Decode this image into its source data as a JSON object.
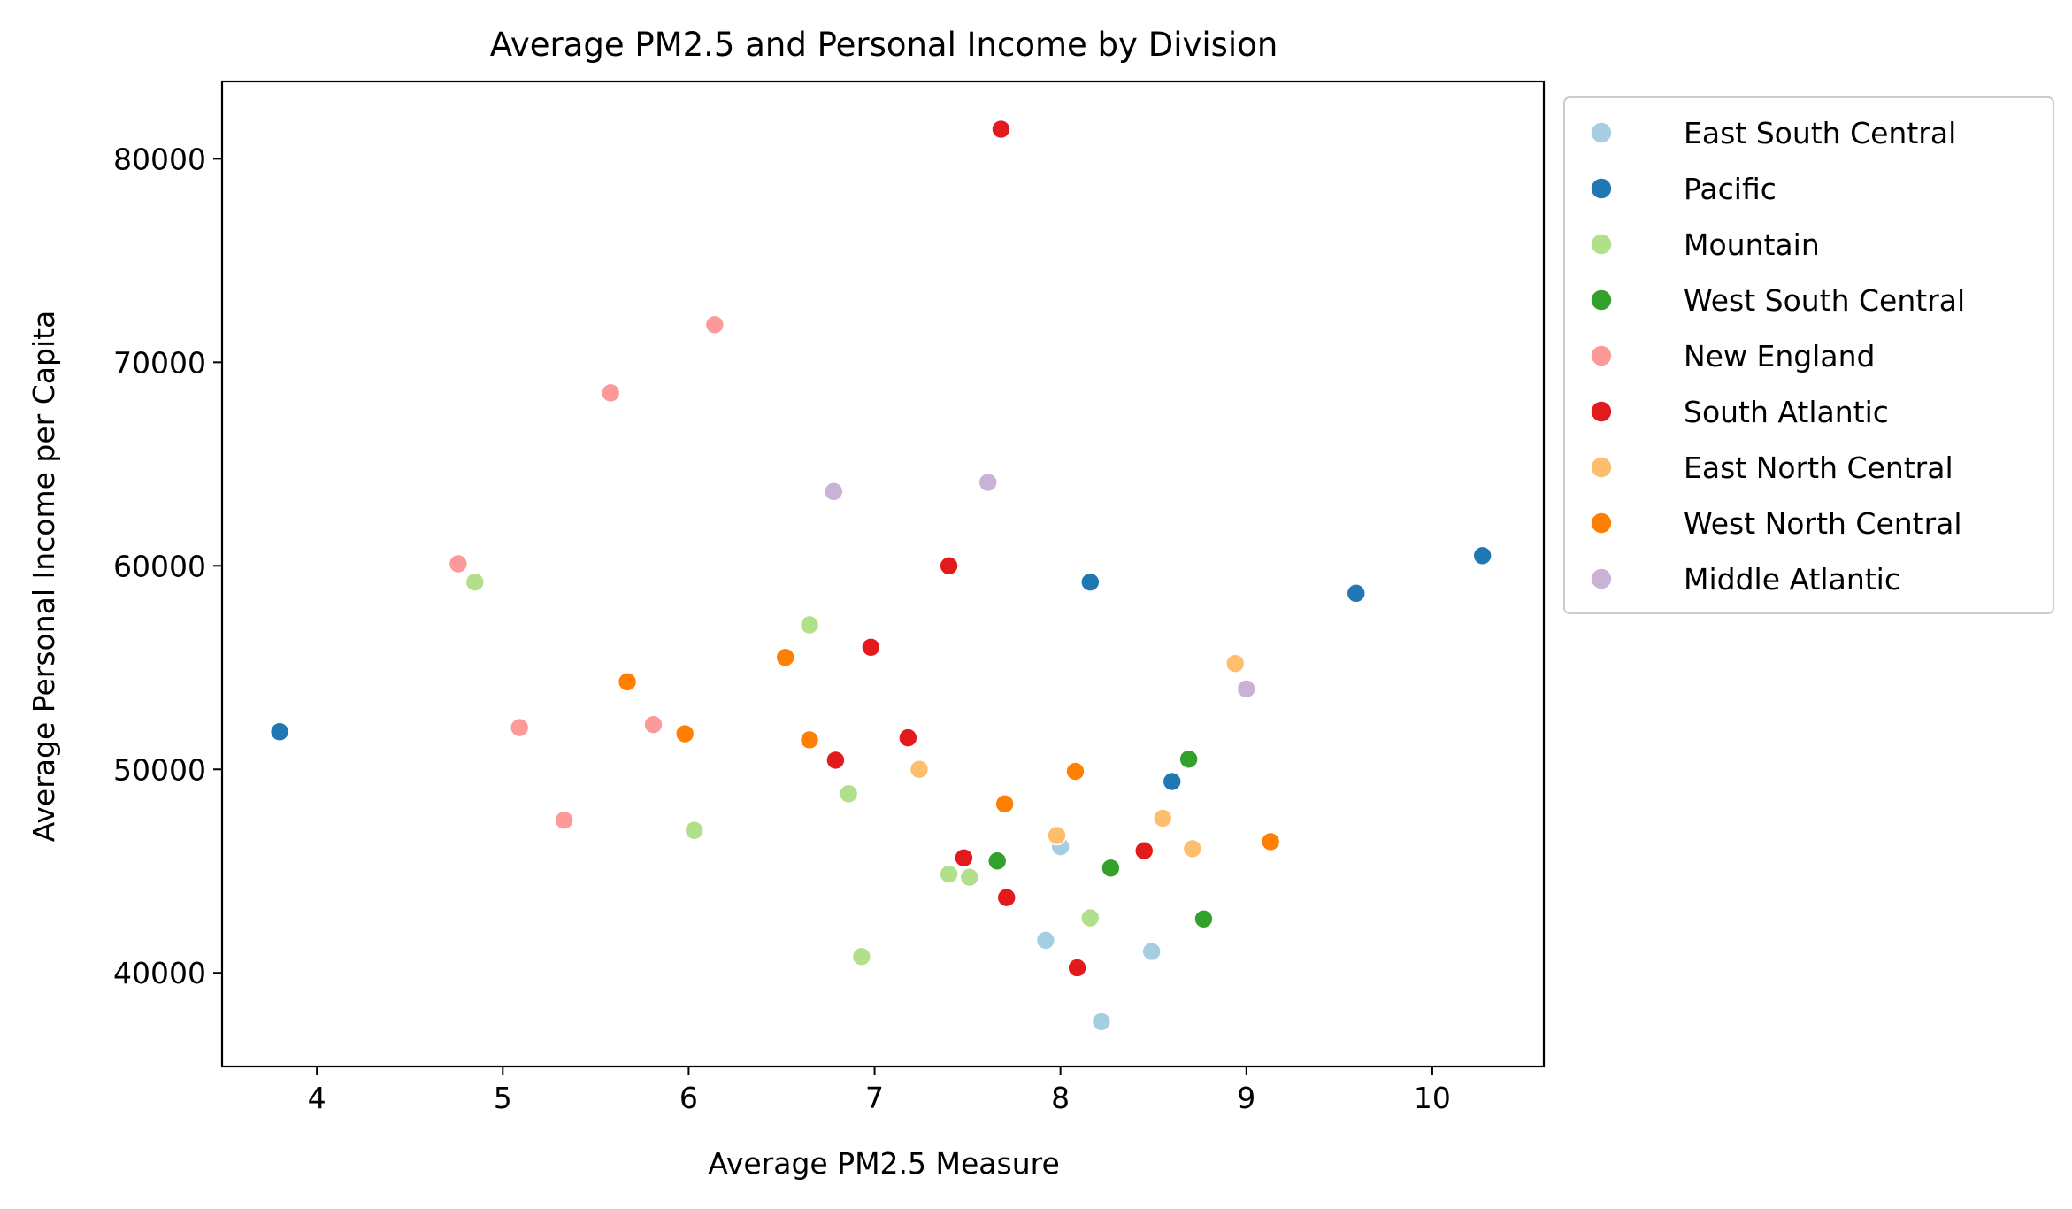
{
  "chart_data": {
    "type": "scatter",
    "title": "Average PM2.5 and Personal Income by Division",
    "xlabel": "Average PM2.5 Measure",
    "ylabel": "Average Personal Income per Capita",
    "xlim": [
      3.49,
      10.6
    ],
    "ylim": [
      35400,
      83800
    ],
    "xticks": [
      4,
      5,
      6,
      7,
      8,
      9,
      10
    ],
    "yticks": [
      40000,
      50000,
      60000,
      70000,
      80000
    ],
    "grid": false,
    "legend_position": "outside-right",
    "series": [
      {
        "name": "East South Central",
        "color": "#a6cee3",
        "points": [
          [
            8.0,
            46200
          ],
          [
            7.92,
            41600
          ],
          [
            8.49,
            41050
          ],
          [
            8.22,
            37600
          ]
        ]
      },
      {
        "name": "Pacific",
        "color": "#1f78b4",
        "points": [
          [
            3.8,
            51850
          ],
          [
            8.16,
            59200
          ],
          [
            9.59,
            58650
          ],
          [
            10.27,
            60500
          ],
          [
            8.6,
            49400
          ]
        ]
      },
      {
        "name": "Mountain",
        "color": "#b2df8a",
        "points": [
          [
            4.85,
            59200
          ],
          [
            6.65,
            57100
          ],
          [
            6.86,
            48800
          ],
          [
            6.03,
            47000
          ],
          [
            7.4,
            44850
          ],
          [
            7.51,
            44700
          ],
          [
            8.16,
            42700
          ],
          [
            6.93,
            40800
          ]
        ]
      },
      {
        "name": "West South Central",
        "color": "#33a02c",
        "points": [
          [
            8.69,
            50500
          ],
          [
            7.66,
            45500
          ],
          [
            8.27,
            45150
          ],
          [
            8.77,
            42650
          ]
        ]
      },
      {
        "name": "New England",
        "color": "#fb9a99",
        "points": [
          [
            6.14,
            71850
          ],
          [
            5.58,
            68500
          ],
          [
            4.76,
            60100
          ],
          [
            5.09,
            52050
          ],
          [
            5.81,
            52200
          ],
          [
            5.33,
            47500
          ]
        ]
      },
      {
        "name": "South Atlantic",
        "color": "#e31a1c",
        "points": [
          [
            7.68,
            81450
          ],
          [
            7.4,
            60000
          ],
          [
            6.98,
            56000
          ],
          [
            7.18,
            51550
          ],
          [
            6.79,
            50450
          ],
          [
            7.48,
            45650
          ],
          [
            8.45,
            46000
          ],
          [
            7.71,
            43700
          ],
          [
            8.09,
            40250
          ]
        ]
      },
      {
        "name": "East North Central",
        "color": "#fdbf6f",
        "points": [
          [
            8.94,
            55200
          ],
          [
            7.24,
            50000
          ],
          [
            7.98,
            46750
          ],
          [
            8.55,
            47600
          ],
          [
            8.71,
            46100
          ]
        ]
      },
      {
        "name": "West North Central",
        "color": "#ff7f00",
        "points": [
          [
            6.52,
            55500
          ],
          [
            5.67,
            54300
          ],
          [
            5.98,
            51750
          ],
          [
            6.65,
            51450
          ],
          [
            8.08,
            49900
          ],
          [
            7.7,
            48300
          ],
          [
            9.13,
            46450
          ]
        ]
      },
      {
        "name": "Middle Atlantic",
        "color": "#cab2d6",
        "points": [
          [
            6.78,
            63650
          ],
          [
            7.61,
            64100
          ],
          [
            9.0,
            53950
          ]
        ]
      }
    ]
  }
}
